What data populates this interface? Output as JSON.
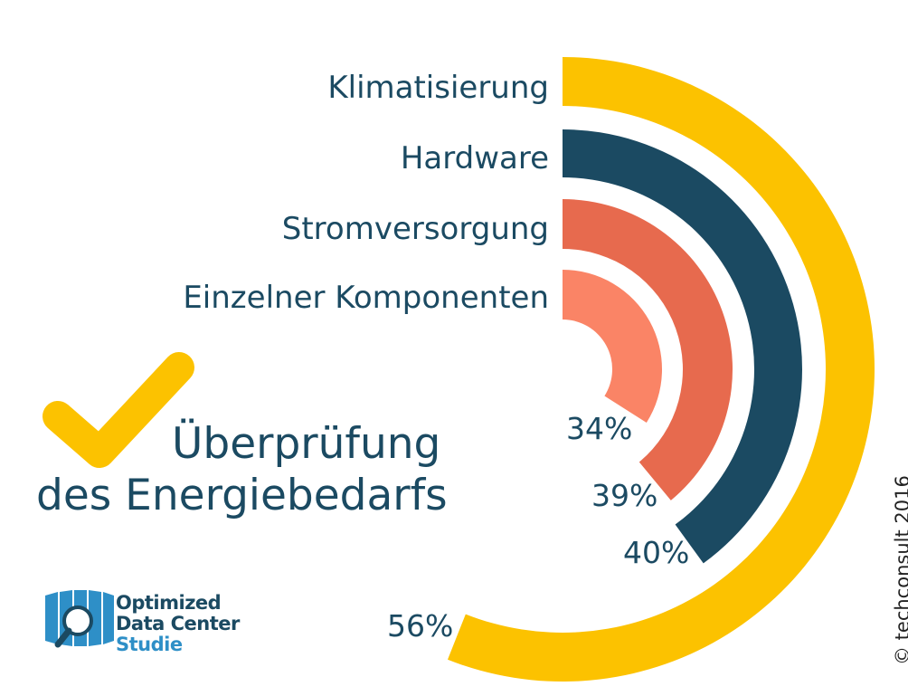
{
  "chart_data": {
    "type": "radial-bar",
    "title": "Überprüfung des Energiebedarfs",
    "categories": [
      "Klimatisierung",
      "Hardware",
      "Stromversorgung",
      "Einzelner Komponenten"
    ],
    "values": [
      56,
      40,
      39,
      34
    ],
    "value_labels": [
      "56%",
      "40%",
      "39%",
      "34%"
    ],
    "unit": "%",
    "colors": [
      "#fcc200",
      "#1b4a62",
      "#e76a4e",
      "#fa8466"
    ]
  },
  "headline": {
    "line1": "Überprüfung",
    "line2": "des Energiebedarfs"
  },
  "logo": {
    "line1": "Optimized",
    "line2": "Data Center",
    "line3": "Studie"
  },
  "copyright": "© techconsult 2016",
  "icons": [
    "check-icon",
    "magnifier-icon"
  ]
}
